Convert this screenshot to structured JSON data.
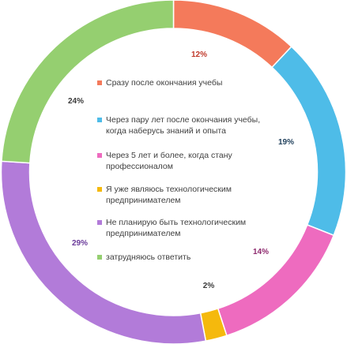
{
  "chart_data": {
    "type": "pie",
    "donut": true,
    "series": [
      {
        "name": "Сразу после окончания учебы",
        "value": 12,
        "label": "12%",
        "color": "#f47a5b"
      },
      {
        "name": "Через пару лет после окончания учебы, когда наберусь знаний и опыта",
        "value": 19,
        "label": "19%",
        "color": "#4ebce8"
      },
      {
        "name": "Через 5 лет и более, когда стану профессионалом",
        "value": 14,
        "label": "14%",
        "color": "#ee6bbf"
      },
      {
        "name": "Я уже являюсь технологическим предпринимателем",
        "value": 2,
        "label": "2%",
        "color": "#f5b90d"
      },
      {
        "name": "Не планирую быть технологическим предпринимателем",
        "value": 29,
        "label": "29%",
        "color": "#b27bd9"
      },
      {
        "name": "затрудняюсь ответить",
        "value": 24,
        "label": "24%",
        "color": "#95cf70"
      }
    ],
    "label_colors": [
      "#c0392b",
      "#1f3f5b",
      "#8e2a6e",
      "#3a3a3a",
      "#6a3a9a",
      "#3a3a3a"
    ],
    "legend_placement": "center"
  }
}
